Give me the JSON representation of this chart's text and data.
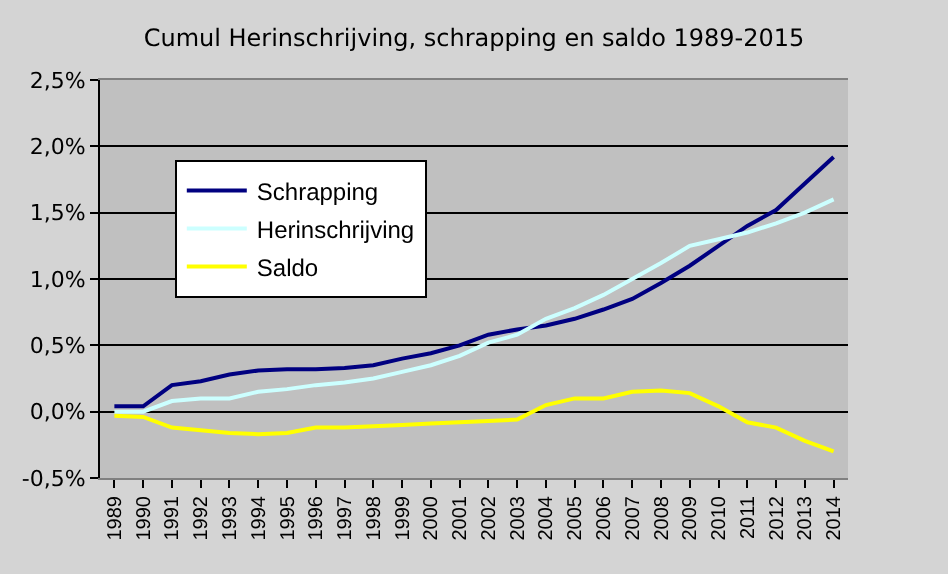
{
  "chart_data": {
    "type": "line",
    "title": "Cumul Herinschrijving, schrapping en saldo 1989-2015",
    "categories": [
      "1989",
      "1990",
      "1991",
      "1992",
      "1993",
      "1994",
      "1995",
      "1996",
      "1997",
      "1998",
      "1999",
      "2000",
      "2001",
      "2002",
      "2003",
      "2004",
      "2005",
      "2006",
      "2007",
      "2008",
      "2009",
      "2010",
      "2011",
      "2012",
      "2013",
      "2014"
    ],
    "series": [
      {
        "name": "Schrapping",
        "color": "#000080",
        "values": [
          0.04,
          0.04,
          0.2,
          0.23,
          0.28,
          0.31,
          0.32,
          0.32,
          0.33,
          0.35,
          0.4,
          0.44,
          0.5,
          0.58,
          0.62,
          0.65,
          0.7,
          0.77,
          0.85,
          0.97,
          1.1,
          1.25,
          1.4,
          1.52,
          1.72,
          1.92
        ]
      },
      {
        "name": "Herinschrijving",
        "color": "#ccffff",
        "values": [
          0.0,
          0.0,
          0.08,
          0.1,
          0.1,
          0.15,
          0.17,
          0.2,
          0.22,
          0.25,
          0.3,
          0.35,
          0.42,
          0.52,
          0.58,
          0.7,
          0.78,
          0.88,
          1.0,
          1.12,
          1.25,
          1.3,
          1.35,
          1.42,
          1.5,
          1.6
        ]
      },
      {
        "name": "Saldo",
        "color": "#ffff00",
        "values": [
          -0.03,
          -0.04,
          -0.12,
          -0.14,
          -0.16,
          -0.17,
          -0.16,
          -0.12,
          -0.12,
          -0.11,
          -0.1,
          -0.09,
          -0.08,
          -0.07,
          -0.06,
          0.05,
          0.1,
          0.1,
          0.15,
          0.16,
          0.14,
          0.04,
          -0.08,
          -0.12,
          -0.22,
          -0.3
        ]
      }
    ],
    "ylim": [
      -0.5,
      2.5
    ],
    "yticks": [
      {
        "value": -0.5,
        "label": "-0,5%"
      },
      {
        "value": 0,
        "label": "0,0%"
      },
      {
        "value": 0.5,
        "label": "0,5%"
      },
      {
        "value": 1,
        "label": "1,0%"
      },
      {
        "value": 1.5,
        "label": "1,5%"
      },
      {
        "value": 2,
        "label": "2,0%"
      },
      {
        "value": 2.5,
        "label": "2,5%"
      }
    ],
    "grid": "y",
    "legend": "top left",
    "marker": "none",
    "line_style": "solid"
  }
}
